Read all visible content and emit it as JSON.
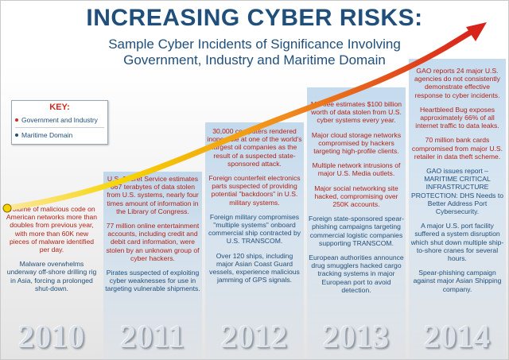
{
  "title": "INCREASING CYBER RISKS:",
  "subtitle_lines": [
    "Sample Cyber Incidents of Significance Involving",
    "Government, Industry and Maritime Domain"
  ],
  "key": {
    "title": "KEY:",
    "items": [
      {
        "label": "Government and Industry",
        "color": "#d3281f"
      },
      {
        "label": "Maritime Domain",
        "color": "#1f4f7a"
      }
    ]
  },
  "colors": {
    "title_blue": "#1f4f7a",
    "gov_red": "#b22318",
    "maritime_blue": "#1f4f7a",
    "arrow_start": "#f7d400",
    "arrow_end": "#d8231b"
  },
  "years": [
    {
      "year": "2010",
      "entries": [
        {
          "type": "gov",
          "text": "Volume of malicious code on American networks more than doubles from previous year, with more than 60K new pieces of malware identified per day."
        },
        {
          "type": "maritime",
          "text": "Malware overwhelms underway off-shore drilling rig in Asia, forcing a prolonged shut-down."
        }
      ]
    },
    {
      "year": "2011",
      "entries": [
        {
          "type": "gov",
          "text": "U.S. Secret Service estimates 867 terabytes of data stolen from U.S. systems, nearly four times amount of information in the Library of Congress."
        },
        {
          "type": "gov",
          "text": "77 million online entertainment accounts, including credit and debit card information, were stolen by an unknown group of cyber hackers."
        },
        {
          "type": "maritime",
          "text": "Pirates suspected of exploiting cyber weaknesses for use in targeting vulnerable shipments."
        }
      ]
    },
    {
      "year": "2012",
      "entries": [
        {
          "type": "gov",
          "text": "30,000 computers rendered inoperable at one of the world's largest oil companies as the result of a suspected state-sponsored attack."
        },
        {
          "type": "gov",
          "text": "Foreign counterfeit electronics parts suspected of providing potential \"backdoors\" in U.S. military systems."
        },
        {
          "type": "maritime",
          "text": "Foreign military compromises \"multiple systems\" onboard commercial ship contracted by U.S. TRANSCOM."
        },
        {
          "type": "maritime",
          "text": "Over 120 ships, including major Asian Coast Guard vessels, experience malicious jamming of GPS signals."
        }
      ]
    },
    {
      "year": "2013",
      "entries": [
        {
          "type": "gov",
          "text": "McAfee estimates $100 billion worth of data stolen from U.S. cyber systems every year."
        },
        {
          "type": "gov",
          "text": "Major cloud storage networks compromised by hackers targeting high-profile clients."
        },
        {
          "type": "gov",
          "text": "Multiple network intrusions of major U.S. Media outlets."
        },
        {
          "type": "gov",
          "text": "Major social networking site hacked, compromising over 250K accounts."
        },
        {
          "type": "maritime",
          "text": "Foreign state-sponsored spear-phishing campaigns targeting commercial logistic companies supporting TRANSCOM."
        },
        {
          "type": "maritime",
          "text": "European authorities announce drug smugglers hacked cargo tracking systems in major European port to avoid detection."
        }
      ]
    },
    {
      "year": "2014",
      "entries": [
        {
          "type": "gov",
          "text": "GAO reports 24 major U.S. agencies do not consistently demonstrate effective response to cyber incidents."
        },
        {
          "type": "gov",
          "text": "Heartbleed Bug exposes approximately 66% of all internet traffic to data leaks."
        },
        {
          "type": "gov",
          "text": "70 million bank cards compromised from major U.S. retailer in data theft scheme."
        },
        {
          "type": "maritime",
          "text": "GAO issues report – MARITIME CRITICAL INFRASTRUCTURE PROTECTION: DHS Needs to Better Address Port Cybersecurity."
        },
        {
          "type": "maritime",
          "text": "A major U.S. port facility suffered a system disruption which shut down multiple ship-to-shore cranes for several hours."
        },
        {
          "type": "maritime",
          "text": "Spear-phishing campaign against major Asian Shipping company."
        }
      ]
    }
  ]
}
